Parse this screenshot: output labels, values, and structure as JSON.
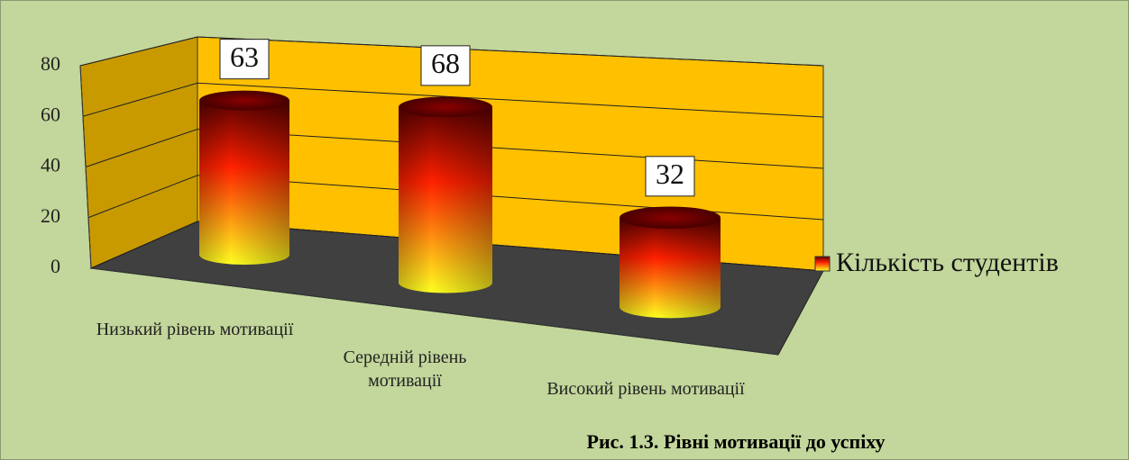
{
  "chart_data": {
    "type": "bar3d-cylinder",
    "title": "Рис. 1.3. Рівні мотивації до успіху",
    "categories": [
      "Низький рівень мотивації",
      "Середній рівень мотивації",
      "Високий рівень мотивації"
    ],
    "series": [
      {
        "name": "Кількість студентів",
        "values": [
          63,
          68,
          32
        ]
      }
    ],
    "ylim": [
      0,
      80
    ],
    "yticks": [
      0,
      20,
      40,
      60,
      80
    ],
    "grid": true,
    "legend": "right"
  }
}
